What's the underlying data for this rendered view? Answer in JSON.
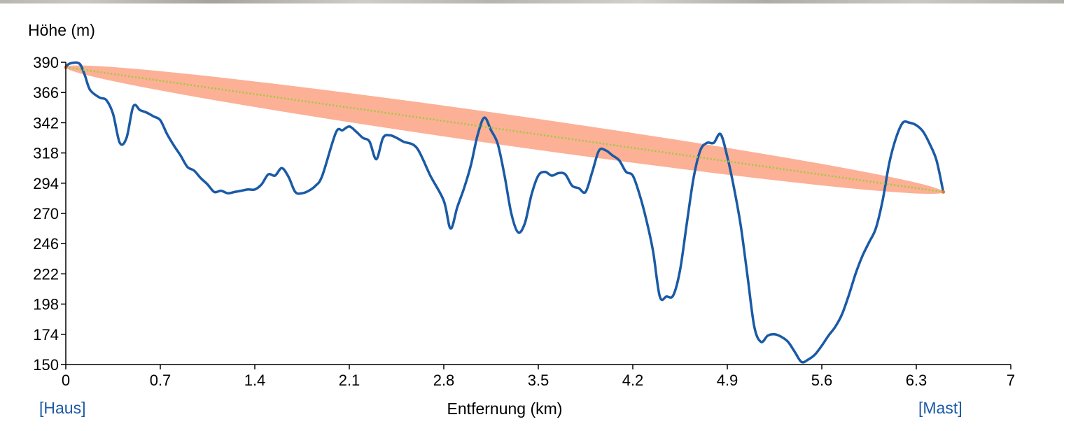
{
  "chart_data": {
    "type": "line",
    "ylabel": "Höhe (m)",
    "xlabel": "Entfernung (km)",
    "xlim": [
      0,
      7
    ],
    "ylim": [
      150,
      390
    ],
    "x_ticks": [
      "0",
      "0.7",
      "1.4",
      "2.1",
      "2.8",
      "3.5",
      "4.2",
      "4.9",
      "5.6",
      "6.3",
      "7"
    ],
    "y_ticks": [
      "390",
      "366",
      "342",
      "318",
      "294",
      "270",
      "246",
      "222",
      "198",
      "174",
      "150"
    ],
    "colors": {
      "profile": "#1a5aa6",
      "line_of_sight": "#9acd32",
      "fresnel_zone": "#fa8a64"
    },
    "series": [
      {
        "type": "line",
        "x": [
          0,
          0.03,
          0.1,
          0.14,
          0.18,
          0.25,
          0.3,
          0.35,
          0.4,
          0.45,
          0.5,
          0.55,
          0.6,
          0.65,
          0.7,
          0.75,
          0.8,
          0.85,
          0.9,
          0.95,
          1.0,
          1.05,
          1.1,
          1.15,
          1.2,
          1.25,
          1.3,
          1.35,
          1.4,
          1.45,
          1.5,
          1.55,
          1.6,
          1.65,
          1.7,
          1.75,
          1.8,
          1.85,
          1.9,
          2.0,
          2.05,
          2.1,
          2.15,
          2.2,
          2.25,
          2.3,
          2.35,
          2.4,
          2.45,
          2.5,
          2.6,
          2.7,
          2.8,
          2.85,
          2.9,
          2.95,
          3.0,
          3.05,
          3.1,
          3.15,
          3.2,
          3.25,
          3.3,
          3.35,
          3.4,
          3.45,
          3.5,
          3.55,
          3.6,
          3.65,
          3.7,
          3.75,
          3.8,
          3.85,
          3.9,
          3.95,
          4.0,
          4.05,
          4.1,
          4.15,
          4.2,
          4.25,
          4.3,
          4.35,
          4.4,
          4.45,
          4.5,
          4.55,
          4.6,
          4.65,
          4.7,
          4.75,
          4.8,
          4.85,
          4.9,
          4.95,
          5.0,
          5.05,
          5.1,
          5.15,
          5.2,
          5.25,
          5.3,
          5.35,
          5.4,
          5.45,
          5.5,
          5.55,
          5.6,
          5.65,
          5.7,
          5.75,
          5.8,
          5.85,
          5.9,
          5.95,
          6.0,
          6.05,
          6.1,
          6.15,
          6.2,
          6.25,
          6.3,
          6.35,
          6.4,
          6.45,
          6.5
        ],
        "values": [
          386,
          389,
          389,
          380,
          368,
          362,
          360,
          349,
          326,
          330,
          355,
          352,
          350,
          347,
          344,
          333,
          324,
          316,
          307,
          304,
          298,
          293,
          287,
          288,
          286,
          287,
          288,
          289,
          289,
          293,
          301,
          300,
          306,
          299,
          287,
          286,
          288,
          292,
          300,
          334,
          336,
          339,
          335,
          330,
          327,
          313,
          330,
          332,
          330,
          327,
          322,
          300,
          280,
          258,
          275,
          290,
          308,
          332,
          346,
          336,
          325,
          300,
          270,
          255,
          262,
          285,
          300,
          303,
          300,
          302,
          301,
          292,
          290,
          287,
          303,
          320,
          320,
          316,
          312,
          303,
          300,
          285,
          265,
          240,
          204,
          204,
          205,
          225,
          262,
          298,
          320,
          326,
          326,
          333,
          315,
          290,
          260,
          220,
          180,
          168,
          173,
          174,
          172,
          168,
          160,
          152,
          154,
          158,
          165,
          173,
          180,
          190,
          205,
          222,
          236,
          247,
          258,
          280,
          310,
          330,
          342,
          342,
          340,
          335,
          325,
          312,
          287
        ]
      }
    ],
    "line_of_sight": {
      "x": [
        0,
        6.5
      ],
      "values": [
        386,
        287
      ]
    }
  },
  "endpoints": {
    "start_label": "[Haus]",
    "end_label": "[Mast]"
  }
}
